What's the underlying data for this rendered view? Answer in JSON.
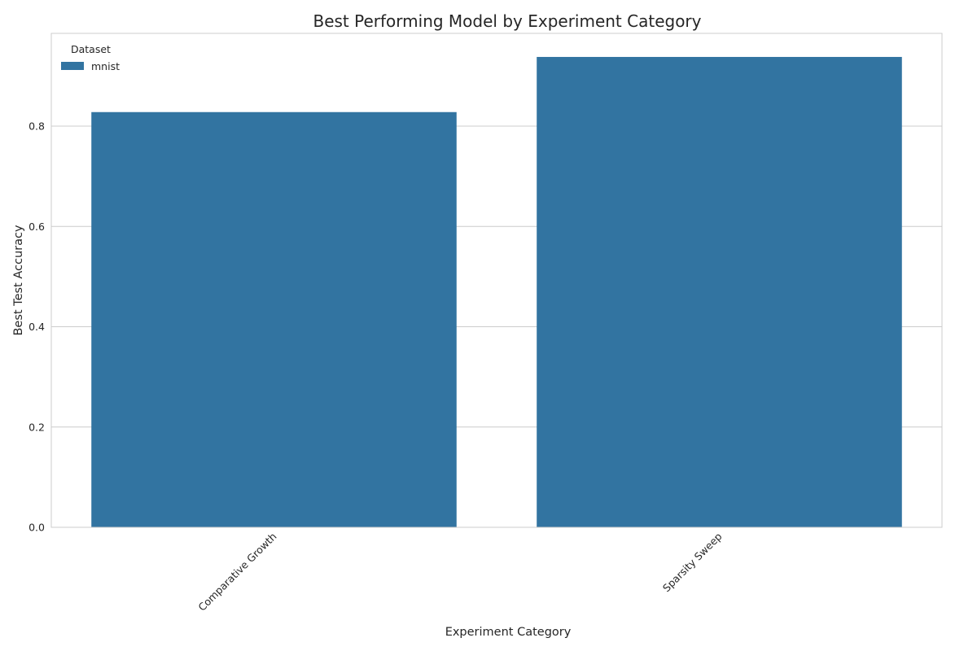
{
  "chart_data": {
    "type": "bar",
    "title": "Best Performing Model by Experiment Category",
    "xlabel": "Experiment Category",
    "ylabel": "Best Test Accuracy",
    "categories": [
      "Comparative Growth",
      "Sparsity Sweep"
    ],
    "series": [
      {
        "name": "mnist",
        "values": [
          0.828,
          0.938
        ],
        "color": "#3274a1"
      }
    ],
    "ylim": [
      0,
      0.985
    ],
    "yticks": [
      "0.0",
      "0.2",
      "0.4",
      "0.6",
      "0.8"
    ],
    "grid": true,
    "legend": {
      "title": "Dataset",
      "position": "top-left"
    }
  }
}
